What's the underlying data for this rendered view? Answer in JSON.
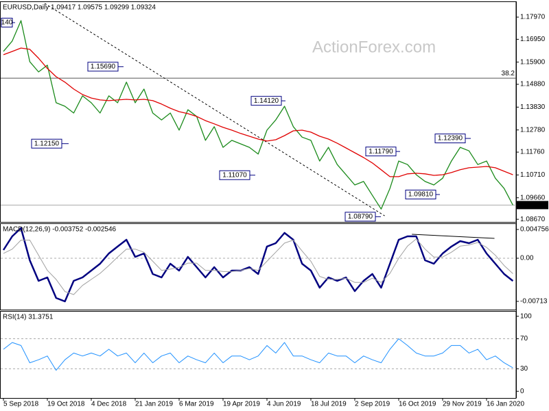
{
  "chart_data": [
    {
      "type": "line",
      "title": "EURUSD,Daily  1.09417 1.09575 1.09299 1.09324",
      "watermark": "ActionForex.com",
      "series": [
        {
          "name": "EURUSD",
          "color": "#1a8a1a",
          "values": [
            1.1639,
            1.1687,
            1.1781,
            1.1592,
            1.1545,
            1.1576,
            1.1403,
            1.1387,
            1.1356,
            1.1435,
            1.1403,
            1.1356,
            1.1435,
            1.1403,
            1.1498,
            1.1403,
            1.1466,
            1.1356,
            1.1324,
            1.1356,
            1.1277,
            1.1371,
            1.134,
            1.123,
            1.1293,
            1.1198,
            1.123,
            1.1214,
            1.1198,
            1.1167,
            1.1277,
            1.1324,
            1.1387,
            1.1293,
            1.1245,
            1.123,
            1.1135,
            1.1198,
            1.1119,
            1.1072,
            1.1025,
            1.1041,
            1.0977,
            1.0914,
            1.1009,
            1.1135,
            1.1119,
            1.1072,
            1.1041,
            1.1025,
            1.1056,
            1.1135,
            1.1198,
            1.1182,
            1.1119,
            1.1135,
            1.1056,
            1.1009,
            1.09324
          ]
        },
        {
          "name": "MA",
          "color": "#e00000",
          "values": [
            1.1624,
            1.1639,
            1.1655,
            1.1649,
            1.1608,
            1.1561,
            1.1523,
            1.1498,
            1.1466,
            1.1441,
            1.1425,
            1.1416,
            1.1413,
            1.1416,
            1.1419,
            1.1416,
            1.1419,
            1.1413,
            1.1397,
            1.1378,
            1.1362,
            1.1353,
            1.134,
            1.1321,
            1.1306,
            1.129,
            1.1277,
            1.1262,
            1.1249,
            1.1236,
            1.1227,
            1.1233,
            1.1252,
            1.1274,
            1.1277,
            1.1268,
            1.1249,
            1.1236,
            1.1217,
            1.1195,
            1.1173,
            1.1151,
            1.1126,
            1.1095,
            1.1063,
            1.1063,
            1.1076,
            1.1079,
            1.1076,
            1.1069,
            1.1072,
            1.1082,
            1.1095,
            1.1104,
            1.1107,
            1.111,
            1.1104,
            1.1088,
            1.1072
          ]
        }
      ],
      "ylim": [
        1.0858,
        1.186
      ],
      "yticks": [
        {
          "value": 1.1797,
          "label": "1.17970"
        },
        {
          "value": 1.1695,
          "label": "1.16950"
        },
        {
          "value": 1.159,
          "label": "1.15900"
        },
        {
          "value": 1.1488,
          "label": "1.14880"
        },
        {
          "value": 1.1383,
          "label": "1.13830"
        },
        {
          "value": 1.1278,
          "label": "1.12780"
        },
        {
          "value": 1.1176,
          "label": "1.11760"
        },
        {
          "value": 1.1071,
          "label": "1.10710"
        },
        {
          "value": 1.0966,
          "label": "1.09660"
        },
        {
          "value": 1.0867,
          "label": "1.08670"
        }
      ],
      "levels": [
        {
          "value": 1.1516,
          "label": "38.2"
        }
      ],
      "last_price": {
        "value": 1.09324,
        "label": "1.09324"
      },
      "trendline": {
        "x": [
          4.7,
          43.4
        ],
        "values": [
          1.186,
          1.0883
        ]
      },
      "annotations": [
        {
          "label": "140"
        },
        {
          "value": 1.1569,
          "label": "1.15690"
        },
        {
          "value": 1.1215,
          "label": "1.12150"
        },
        {
          "value": 1.107,
          "label": "1.11070"
        },
        {
          "value": 1.1412,
          "label": "1.14120"
        },
        {
          "value": 1.0879,
          "label": "1.08790"
        },
        {
          "value": 1.1179,
          "label": "1.11790"
        },
        {
          "value": 1.0981,
          "label": "1.09810"
        },
        {
          "value": 1.1239,
          "label": "1.12390"
        }
      ]
    },
    {
      "type": "line",
      "title": "MACD(12,26,9) -0.003752 -0.002546",
      "series": [
        {
          "name": "MACD",
          "color": "#000080",
          "width": 2.5,
          "values": [
            0.00136,
            0.00362,
            0.00498,
            -0.00034,
            -0.00374,
            -0.00317,
            -0.00657,
            -0.00713,
            -0.00374,
            -0.00317,
            -0.00204,
            -0.00091,
            0.00079,
            0.00193,
            0.00306,
            0.00023,
            0.00079,
            -0.0026,
            -0.00317,
            -0.00091,
            -0.00204,
            0.00023,
            -0.00147,
            -0.00317,
            -0.00147,
            -0.00317,
            -0.00204,
            -0.00204,
            -0.00147,
            -0.0026,
            0.00193,
            0.00249,
            0.00419,
            0.00306,
            -0.00091,
            -0.00204,
            -0.00487,
            -0.00317,
            -0.00374,
            -0.00317,
            -0.00544,
            -0.00374,
            -0.0026,
            -0.00487,
            -0.00091,
            0.00306,
            0.00362,
            0.00362,
            -0.00034,
            -0.00091,
            0.00079,
            0.00193,
            0.00283,
            0.00249,
            0.00306,
            0.00079,
            -0.00091,
            -0.0026,
            -0.003752
          ]
        },
        {
          "name": "Signal",
          "color": "#a0a0a0",
          "width": 1,
          "values": [
            0.0008,
            0.0015,
            0.003,
            0.003,
            0.0005,
            -0.002,
            -0.0035,
            -0.0055,
            -0.006,
            -0.0045,
            -0.0035,
            -0.0025,
            -0.0012,
            0.0002,
            0.0015,
            0.0015,
            0.001,
            -0.0005,
            -0.002,
            -0.0018,
            -0.0015,
            -0.0008,
            -0.0008,
            -0.002,
            -0.002,
            -0.0022,
            -0.0022,
            -0.002,
            -0.0017,
            -0.002,
            -0.0005,
            0.001,
            0.0025,
            0.003,
            0.0012,
            -0.0005,
            -0.003,
            -0.0035,
            -0.0035,
            -0.0033,
            -0.004,
            -0.004,
            -0.0033,
            -0.004,
            -0.0025,
            0,
            0.002,
            0.0032,
            0.0015,
            0.0002,
            0.0002,
            0.001,
            0.002,
            0.0022,
            0.0026,
            0.0018,
            0.0005,
            -0.0012,
            -0.002546
          ]
        }
      ],
      "ylim": [
        -0.00838,
        0.00566
      ],
      "yticks": [
        0.004756,
        {
          "value": 0,
          "label": "0.00"
        },
        -0.00713
      ],
      "levels": [
        0
      ],
      "trendline": {
        "x": [
          46.5,
          55.9
        ],
        "values": [
          0.00396,
          0.00328
        ]
      }
    },
    {
      "type": "line",
      "title": "RSI(14) 31.3751",
      "categories": [
        "5 Sep 2018",
        null,
        null,
        null,
        null,
        "19 Oct 2018",
        null,
        null,
        null,
        null,
        "4 Dec 2018",
        null,
        null,
        null,
        null,
        "21 Jan 2019",
        null,
        null,
        null,
        null,
        "6 Mar 2019",
        null,
        null,
        null,
        null,
        "19 Apr 2019",
        null,
        null,
        null,
        null,
        "4 Jun 2019",
        null,
        null,
        null,
        null,
        "18 Jul 2019",
        null,
        null,
        null,
        null,
        "2 Sep 2019",
        null,
        null,
        null,
        null,
        "16 Oct 2019",
        null,
        null,
        null,
        null,
        "29 Nov 2019",
        null,
        null,
        null,
        null,
        "16 Jan 2020",
        null,
        null,
        null
      ],
      "series": [
        {
          "name": "RSI",
          "color": "#1e90ff",
          "width": 1,
          "values": [
            56,
            65,
            61,
            38,
            42,
            47,
            28,
            42,
            51,
            47,
            51,
            47,
            56,
            47,
            51,
            38,
            51,
            38,
            47,
            51,
            38,
            47,
            42,
            38,
            51,
            38,
            47,
            47,
            42,
            47,
            61,
            51,
            65,
            47,
            47,
            42,
            38,
            51,
            47,
            47,
            38,
            47,
            42,
            38,
            56,
            70,
            61,
            51,
            47,
            47,
            51,
            61,
            61,
            51,
            56,
            42,
            47,
            38,
            31.3751
          ]
        }
      ],
      "ylim": [
        -8,
        107
      ],
      "yticks": [
        100,
        70,
        30,
        0
      ],
      "levels": [
        70,
        30
      ]
    }
  ]
}
